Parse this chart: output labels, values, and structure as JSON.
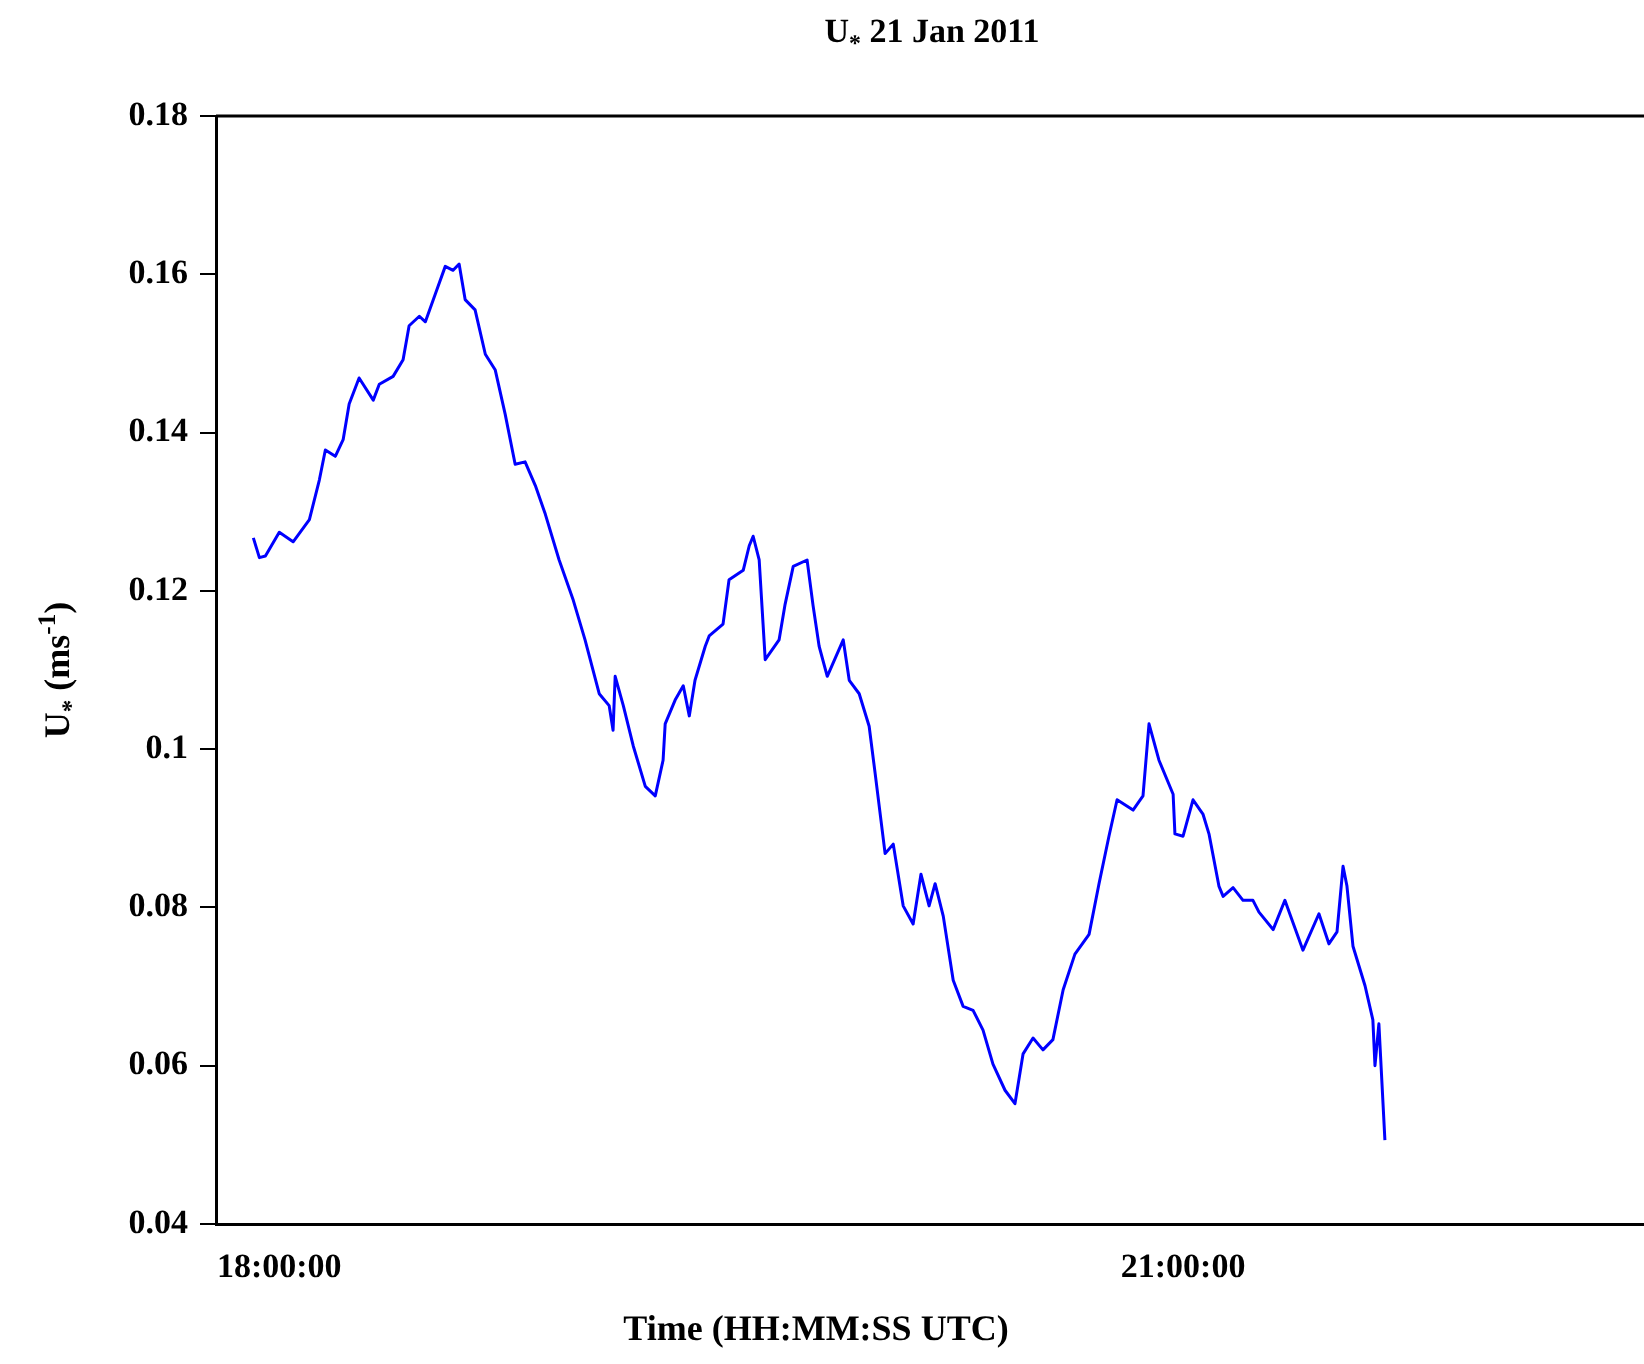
{
  "chart_data": {
    "type": "line",
    "title": "U$_{*}$ 21 Jan 2011",
    "xlabel": "Time (HH:MM:SS UTC)",
    "ylabel": "U$_{*}$ (ms$^{-1}$)",
    "xlim": [
      17.79,
      22.53
    ],
    "ylim": [
      0.04,
      0.18
    ],
    "xticks": [
      {
        "value": 18,
        "label": "18:00:00"
      },
      {
        "value": 21,
        "label": "21:00:00"
      }
    ],
    "yticks": [
      0.04,
      0.06,
      0.08,
      0.1,
      0.12,
      0.14,
      0.16,
      0.18
    ],
    "marker": "none",
    "line_style": "solid",
    "series": [
      {
        "color": "#0000ff",
        "x": [
          17.914,
          17.934,
          17.954,
          18.0,
          18.046,
          18.1,
          18.133,
          18.153,
          18.186,
          18.212,
          18.232,
          18.265,
          18.312,
          18.332,
          18.378,
          18.411,
          18.431,
          18.465,
          18.485,
          18.518,
          18.551,
          18.577,
          18.597,
          18.617,
          18.65,
          18.684,
          18.717,
          18.75,
          18.783,
          18.816,
          18.85,
          18.883,
          18.929,
          18.976,
          19.015,
          19.062,
          19.095,
          19.108,
          19.115,
          19.142,
          19.175,
          19.215,
          19.248,
          19.274,
          19.281,
          19.314,
          19.341,
          19.361,
          19.38,
          19.414,
          19.427,
          19.473,
          19.493,
          19.54,
          19.56,
          19.573,
          19.593,
          19.613,
          19.659,
          19.679,
          19.706,
          19.752,
          19.772,
          19.792,
          19.819,
          19.872,
          19.892,
          19.925,
          19.958,
          19.978,
          20.011,
          20.038,
          20.071,
          20.104,
          20.13,
          20.157,
          20.177,
          20.204,
          20.237,
          20.27,
          20.303,
          20.336,
          20.369,
          20.409,
          20.442,
          20.469,
          20.502,
          20.535,
          20.568,
          20.602,
          20.641,
          20.688,
          20.721,
          20.754,
          20.781,
          20.834,
          20.867,
          20.887,
          20.92,
          20.967,
          20.973,
          21.0,
          21.033,
          21.066,
          21.086,
          21.119,
          21.133,
          21.166,
          21.199,
          21.232,
          21.252,
          21.299,
          21.338,
          21.398,
          21.451,
          21.484,
          21.511,
          21.531,
          21.544,
          21.564,
          21.584,
          21.604,
          21.63,
          21.637,
          21.65,
          21.67
        ],
        "values": [
          0.1267,
          0.1242,
          0.1244,
          0.1274,
          0.1262,
          0.129,
          0.134,
          0.1378,
          0.137,
          0.1391,
          0.1436,
          0.1469,
          0.1441,
          0.1461,
          0.1471,
          0.1492,
          0.1535,
          0.1547,
          0.154,
          0.1575,
          0.161,
          0.1605,
          0.1613,
          0.1568,
          0.1555,
          0.1499,
          0.1479,
          0.1423,
          0.136,
          0.1363,
          0.1333,
          0.1297,
          0.1239,
          0.1188,
          0.1138,
          0.107,
          0.1055,
          0.1024,
          0.1092,
          0.1055,
          0.1004,
          0.0953,
          0.0941,
          0.0986,
          0.1032,
          0.1062,
          0.108,
          0.1042,
          0.1087,
          0.113,
          0.1143,
          0.1158,
          0.1214,
          0.1226,
          0.1257,
          0.1269,
          0.1239,
          0.1113,
          0.1138,
          0.1183,
          0.1231,
          0.1239,
          0.1181,
          0.113,
          0.1092,
          0.1138,
          0.1087,
          0.107,
          0.1029,
          0.0969,
          0.0868,
          0.088,
          0.0802,
          0.0779,
          0.0842,
          0.0802,
          0.083,
          0.0789,
          0.0708,
          0.0675,
          0.067,
          0.0645,
          0.0602,
          0.0569,
          0.0552,
          0.0615,
          0.0635,
          0.062,
          0.0633,
          0.0696,
          0.0741,
          0.0766,
          0.083,
          0.089,
          0.0936,
          0.0923,
          0.0941,
          0.1032,
          0.0986,
          0.0943,
          0.0893,
          0.089,
          0.0936,
          0.0918,
          0.0893,
          0.0827,
          0.0814,
          0.0825,
          0.0809,
          0.0809,
          0.0794,
          0.0772,
          0.0809,
          0.0746,
          0.0792,
          0.0754,
          0.0769,
          0.0852,
          0.0827,
          0.0751,
          0.0726,
          0.0701,
          0.0658,
          0.06,
          0.0653,
          0.0506
        ]
      }
    ]
  }
}
